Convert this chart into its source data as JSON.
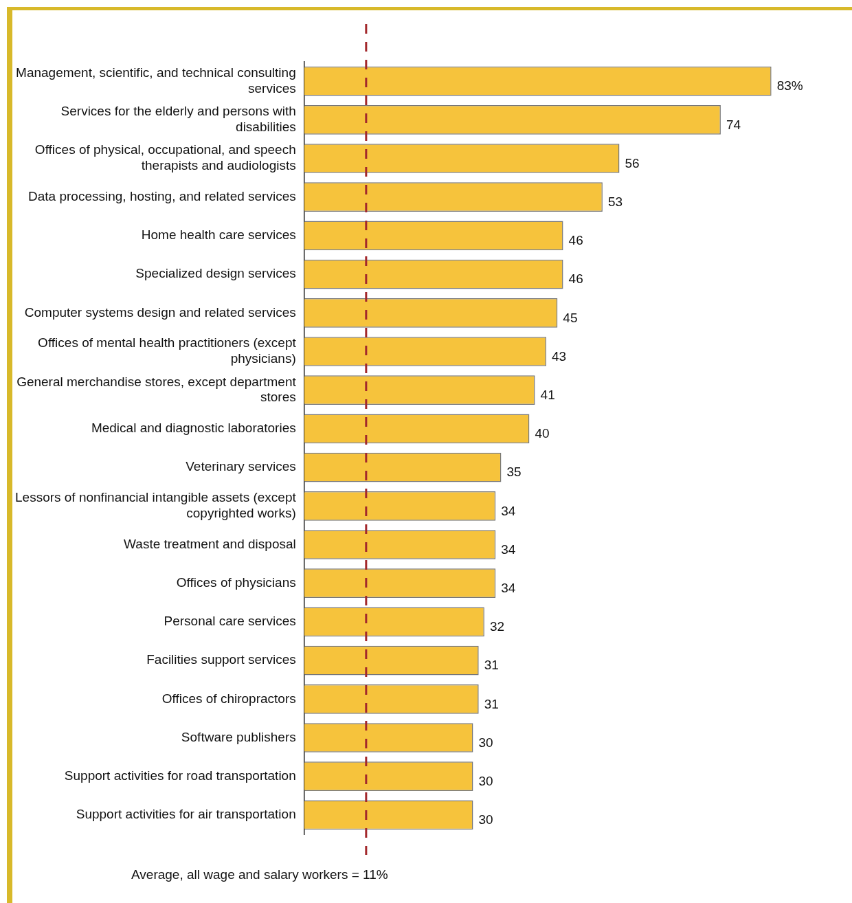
{
  "chart_data": {
    "type": "bar",
    "orientation": "horizontal",
    "categories": [
      "Management, scientific, and technical consulting services",
      "Services for the elderly and persons with disabilities",
      "Offices of physical, occupational, and speech therapists and audiologists",
      "Data processing, hosting, and related services",
      "Home health care services",
      "Specialized design services",
      "Computer systems design and related services",
      "Offices of mental health practitioners (except physicians)",
      "General merchandise stores, except department stores",
      "Medical and diagnostic laboratories",
      "Veterinary services",
      "Lessors of nonfinancial intangible assets (except copyrighted works)",
      "Waste treatment and disposal",
      "Offices of physicians",
      "Personal care services",
      "Facilities support services",
      "Offices of chiropractors",
      "Software publishers",
      "Support activities for road transportation",
      "Support activities for air transportation"
    ],
    "values": [
      83,
      74,
      56,
      53,
      46,
      46,
      45,
      43,
      41,
      40,
      35,
      34,
      34,
      34,
      32,
      31,
      31,
      30,
      30,
      30
    ],
    "value_labels": [
      "83%",
      "74",
      "56",
      "53",
      "46",
      "46",
      "45",
      "43",
      "41",
      "40",
      "35",
      "34",
      "34",
      "34",
      "32",
      "31",
      "31",
      "30",
      "30",
      "30"
    ],
    "color": "#f6c33c",
    "tick_labels": "y",
    "legend": false,
    "ref_lines": [
      {
        "axis": "x",
        "value": 11,
        "label": "Average, all wage and salary workers = 11%",
        "color": "#a3282c",
        "line_style": "dashed"
      }
    ]
  }
}
